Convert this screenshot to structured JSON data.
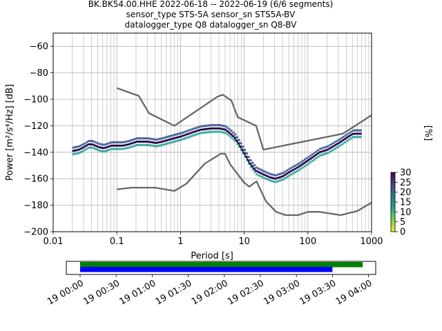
{
  "chart_data": [
    {
      "type": "line",
      "title_lines": [
        "BK.BK54.00.HHE   2022-06-18 -- 2022-06-19  (6/6 segments)",
        "sensor_type STS-5A sensor_sn STS5A-BV",
        "datalogger_type Q8 datalogger_sn Q8-BV"
      ],
      "xlabel": "Period [s]",
      "ylabel": "Power [m²/s⁴/Hz] [dB]",
      "xscale": "log",
      "xlim": [
        0.01,
        1000
      ],
      "ylim": [
        -200,
        -50
      ],
      "grid": true,
      "x_ticks": [
        {
          "value": 0.01,
          "label": "0.01"
        },
        {
          "value": 0.1,
          "label": "0.1"
        },
        {
          "value": 1,
          "label": "1"
        },
        {
          "value": 10,
          "label": "10"
        },
        {
          "value": 100,
          "label": "100"
        },
        {
          "value": 1000,
          "label": "1000"
        }
      ],
      "y_ticks": [
        {
          "value": -60,
          "label": "−60"
        },
        {
          "value": -80,
          "label": "−80"
        },
        {
          "value": -100,
          "label": "−100"
        },
        {
          "value": -120,
          "label": "−120"
        },
        {
          "value": -140,
          "label": "−140"
        },
        {
          "value": -160,
          "label": "−160"
        },
        {
          "value": -180,
          "label": "−180"
        },
        {
          "value": -200,
          "label": "−200"
        }
      ],
      "series": [
        {
          "role": "high-noise-model",
          "color": "#666666",
          "x": [
            0.1,
            0.22,
            0.32,
            0.8,
            3.8,
            4.6,
            6.3,
            7.9,
            15.4,
            20,
            354.8,
            1000
          ],
          "y": [
            -91.5,
            -97.4,
            -110.5,
            -120,
            -98,
            -96.5,
            -101,
            -113.5,
            -120,
            -138,
            -126,
            -112
          ]
        },
        {
          "role": "low-noise-model",
          "color": "#666666",
          "x": [
            0.1,
            0.17,
            0.4,
            0.8,
            1.24,
            2.4,
            4.3,
            5.0,
            6.0,
            10.0,
            12.0,
            15.6,
            21.9,
            31.6,
            45,
            70,
            101,
            154,
            328,
            600,
            1000
          ],
          "y": [
            -168,
            -166.7,
            -166.7,
            -169.2,
            -163.7,
            -148.6,
            -141.1,
            -141.1,
            -149,
            -163,
            -166,
            -162,
            -177,
            -185,
            -187.5,
            -187.5,
            -185,
            -185,
            -187.5,
            -184.4,
            -178
          ]
        },
        {
          "role": "mode",
          "color": "#000000",
          "x": [
            0.02,
            0.025,
            0.03,
            0.035,
            0.04,
            0.05,
            0.06,
            0.07,
            0.08,
            0.1,
            0.12,
            0.15,
            0.2,
            0.25,
            0.3,
            0.4,
            0.5,
            0.7,
            1,
            1.5,
            2,
            3,
            4,
            5,
            6,
            7,
            8,
            10,
            12,
            15,
            20,
            25,
            30,
            40,
            50,
            70,
            100,
            150,
            200,
            300,
            400,
            500,
            700
          ],
          "y": [
            -139,
            -138,
            -136,
            -134,
            -134,
            -136,
            -137,
            -136,
            -135,
            -135,
            -135,
            -134,
            -132,
            -132,
            -132,
            -133,
            -132,
            -130,
            -128,
            -125,
            -123,
            -122,
            -122,
            -123,
            -126,
            -129,
            -133,
            -141,
            -148,
            -154,
            -157,
            -159,
            -160,
            -158,
            -155,
            -151,
            -146,
            -140,
            -138,
            -133,
            -129,
            -126,
            -126
          ]
        }
      ],
      "histogram_band": {
        "dominant_color": "#1aa08c",
        "note_colors": [
          "#2e4f8a",
          "#1aa08c",
          "#43008a",
          "#7ad151"
        ]
      },
      "colorbar": {
        "label": "[%]",
        "min": 0,
        "max": 30,
        "ticks": [
          "0",
          "5",
          "10",
          "15",
          "20",
          "25",
          "30"
        ],
        "cmap": "viridis_r"
      }
    },
    {
      "type": "timeline",
      "xlim_hours": [
        0,
        4.1
      ],
      "tick_labels": [
        "19 00:00",
        "19 00:30",
        "19 01:00",
        "19 01:30",
        "19 02:00",
        "19 02:30",
        "19 03:00",
        "19 03:30",
        "19 04:00"
      ],
      "bars": [
        {
          "color": "#008000",
          "start_hours": 0,
          "end_hours": 3.92
        },
        {
          "color": "#0000ff",
          "start_hours": 0,
          "end_hours": 3.5
        }
      ]
    }
  ]
}
